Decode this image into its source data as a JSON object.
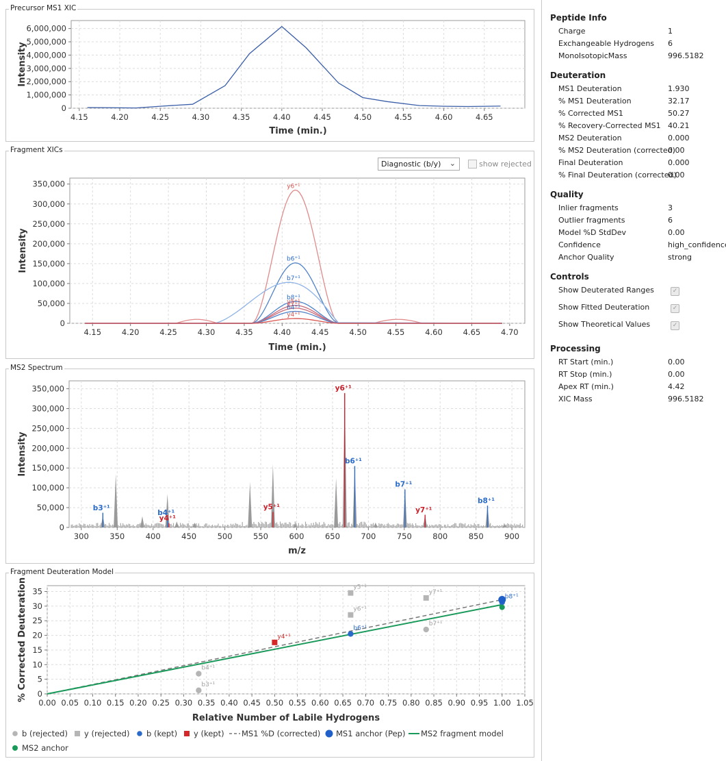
{
  "panels": {
    "xic": "Precursor MS1 XIC",
    "frag": "Fragment XICs",
    "ms2": "MS2 Spectrum",
    "model": "Fragment Deuteration Model"
  },
  "frag_controls": {
    "select_value": "Diagnostic (b/y)",
    "show_rejected_label": "show rejected",
    "show_rejected_checked": false
  },
  "side": {
    "sections": [
      {
        "title": "Peptide Info",
        "rows": [
          {
            "k": "Charge",
            "v": "1"
          },
          {
            "k": "Exchangeable Hydrogens",
            "v": "6"
          },
          {
            "k": "MonoIsotopicMass",
            "v": "996.5182"
          }
        ]
      },
      {
        "title": "Deuteration",
        "rows": [
          {
            "k": "MS1 Deuteration",
            "v": "1.930"
          },
          {
            "k": "% MS1 Deuteration",
            "v": "32.17"
          },
          {
            "k": "% Corrected MS1",
            "v": "50.27"
          },
          {
            "k": "% Recovery-Corrected MS1",
            "v": "40.21"
          },
          {
            "k": "MS2 Deuteration",
            "v": "0.000"
          },
          {
            "k": "% MS2 Deuteration (corrected)",
            "v": "0.00"
          },
          {
            "k": "Final Deuteration",
            "v": "0.000"
          },
          {
            "k": "% Final Deuteration (corrected)",
            "v": "0.00"
          }
        ]
      },
      {
        "title": "Quality",
        "rows": [
          {
            "k": "Inlier fragments",
            "v": "3"
          },
          {
            "k": "Outlier fragments",
            "v": "6"
          },
          {
            "k": "Model %D StdDev",
            "v": "0.00"
          },
          {
            "k": "Confidence",
            "v": "high_confidence"
          },
          {
            "k": "Anchor Quality",
            "v": "strong"
          }
        ]
      },
      {
        "title": "Controls",
        "checks": [
          {
            "k": "Show Deuterated Ranges",
            "checked": true
          },
          {
            "k": "Show Fitted Deuteration",
            "checked": true
          },
          {
            "k": "Show Theoretical Values",
            "checked": true
          }
        ]
      },
      {
        "title": "Processing",
        "rows": [
          {
            "k": "RT Start (min.)",
            "v": "0.00"
          },
          {
            "k": "RT Stop (min.)",
            "v": "0.00"
          },
          {
            "k": "Apex RT (min.)",
            "v": "4.42"
          },
          {
            "k": "XIC Mass",
            "v": "996.5182"
          }
        ]
      }
    ]
  },
  "chart_data": [
    {
      "type": "line",
      "xlabel": "Time (min.)",
      "ylabel": "Intensity",
      "xlim": [
        4.14,
        4.7
      ],
      "ylim": [
        0,
        6600000
      ],
      "xticks": [
        4.15,
        4.2,
        4.25,
        4.3,
        4.35,
        4.4,
        4.45,
        4.5,
        4.55,
        4.6,
        4.65
      ],
      "yticks": [
        0,
        1000000,
        2000000,
        3000000,
        4000000,
        5000000,
        6000000
      ],
      "ytick_labels": [
        "0",
        "1,000,000",
        "2,000,000",
        "3,000,000",
        "4,000,000",
        "5,000,000",
        "6,000,000"
      ],
      "xtick_labels": [
        "4.15",
        "4.20",
        "4.25",
        "4.30",
        "4.35",
        "4.40",
        "4.45",
        "4.50",
        "4.55",
        "4.60",
        "4.65"
      ],
      "color": "#3a5ea8",
      "x": [
        4.16,
        4.19,
        4.22,
        4.25,
        4.29,
        4.33,
        4.36,
        4.4,
        4.43,
        4.47,
        4.5,
        4.53,
        4.57,
        4.6,
        4.63,
        4.67
      ],
      "y": [
        50000,
        40000,
        20000,
        150000,
        300000,
        1700000,
        4100000,
        6150000,
        4550000,
        1900000,
        800000,
        500000,
        200000,
        150000,
        130000,
        160000
      ]
    },
    {
      "type": "line",
      "xlabel": "Time (min.)",
      "ylabel": "Intensity",
      "xlim": [
        4.12,
        4.72
      ],
      "ylim": [
        0,
        365000
      ],
      "xticks": [
        4.15,
        4.2,
        4.25,
        4.3,
        4.35,
        4.4,
        4.45,
        4.5,
        4.55,
        4.6,
        4.65,
        4.7
      ],
      "xtick_labels": [
        "4.15",
        "4.20",
        "4.25",
        "4.30",
        "4.35",
        "4.40",
        "4.45",
        "4.50",
        "4.55",
        "4.60",
        "4.65",
        "4.70"
      ],
      "yticks": [
        0,
        50000,
        100000,
        150000,
        200000,
        250000,
        300000,
        350000
      ],
      "ytick_labels": [
        "0",
        "50,000",
        "100,000",
        "150,000",
        "200,000",
        "250,000",
        "300,000",
        "350,000"
      ],
      "series": [
        {
          "name": "y6⁺¹",
          "peak": 335000,
          "color": "#d9534f",
          "line": "#e08a8a",
          "shape": "gauss",
          "side": 10000
        },
        {
          "name": "b6⁺¹",
          "peak": 152000,
          "color": "#2a6ac8",
          "line": "#4f82c8",
          "shape": "gauss"
        },
        {
          "name": "b7⁺¹",
          "peak": 103000,
          "color": "#2a6ac8",
          "line": "#8fb3e6",
          "shape": "wide"
        },
        {
          "name": "b8⁺¹",
          "peak": 55000,
          "color": "#2a6ac8",
          "line": "#4f82c8",
          "shape": "gauss"
        },
        {
          "name": "y5⁺¹",
          "peak": 45000,
          "color": "#d9534f",
          "line": "#c86a7a",
          "shape": "gauss"
        },
        {
          "name": "y7⁺¹",
          "peak": 38000,
          "color": "#d9534f",
          "line": "#c86a7a",
          "shape": "gauss"
        },
        {
          "name": "b4⁺¹",
          "peak": 30000,
          "color": "#2a6ac8",
          "line": "#4f82c8",
          "shape": "gauss"
        },
        {
          "name": "y4⁺¹",
          "peak": 12000,
          "color": "#d9534f",
          "line": "#d9534f",
          "shape": "gauss"
        }
      ]
    },
    {
      "type": "bar",
      "xlabel": "m/z",
      "ylabel": "Intensity",
      "xlim": [
        283,
        918
      ],
      "ylim": [
        0,
        370000
      ],
      "xticks": [
        300,
        350,
        400,
        450,
        500,
        550,
        600,
        650,
        700,
        750,
        800,
        850,
        900
      ],
      "xtick_labels": [
        "300",
        "350",
        "400",
        "450",
        "500",
        "550",
        "600",
        "650",
        "700",
        "750",
        "800",
        "850",
        "900"
      ],
      "yticks": [
        0,
        50000,
        100000,
        150000,
        200000,
        250000,
        300000,
        350000
      ],
      "ytick_labels": [
        "0",
        "50,000",
        "100,000",
        "150,000",
        "200,000",
        "250,000",
        "300,000",
        "350,000"
      ],
      "peaks": [
        [
          330,
          30000
        ],
        [
          348,
          135000
        ],
        [
          385,
          28000
        ],
        [
          420,
          85000
        ],
        [
          433,
          15000
        ],
        [
          535,
          115000
        ],
        [
          567,
          160000
        ],
        [
          655,
          125000
        ],
        [
          667,
          338000
        ],
        [
          681,
          155000
        ],
        [
          751,
          96000
        ],
        [
          779,
          32000
        ],
        [
          866,
          55000
        ],
        [
          458,
          12000
        ],
        [
          598,
          10000
        ],
        [
          710,
          12000
        ],
        [
          890,
          8000
        ]
      ],
      "annotations": [
        {
          "label": "b3⁺¹",
          "mz": 330,
          "y": 40000,
          "color": "#2a6ac8"
        },
        {
          "label": "b4⁺¹",
          "mz": 420,
          "y": 28000,
          "color": "#2a6ac8"
        },
        {
          "label": "y4⁺¹",
          "mz": 422,
          "y": 14000,
          "color": "#c8202a"
        },
        {
          "label": "y5⁺¹",
          "mz": 567,
          "y": 42000,
          "color": "#c8202a"
        },
        {
          "label": "y6⁺¹",
          "mz": 667,
          "y": 342000,
          "color": "#c8202a"
        },
        {
          "label": "b6⁺¹",
          "mz": 681,
          "y": 158000,
          "color": "#2a6ac8"
        },
        {
          "label": "b7⁺¹",
          "mz": 751,
          "y": 99000,
          "color": "#2a6ac8"
        },
        {
          "label": "y7⁺¹",
          "mz": 779,
          "y": 35000,
          "color": "#c8202a"
        },
        {
          "label": "b8⁺¹",
          "mz": 866,
          "y": 58000,
          "color": "#2a6ac8"
        }
      ]
    },
    {
      "type": "scatter",
      "xlabel": "Relative Number of Labile Hydrogens",
      "ylabel": "% Corrected Deuteration",
      "xlim": [
        0,
        1.05
      ],
      "ylim": [
        0,
        37
      ],
      "xticks": [
        0,
        0.05,
        0.1,
        0.15,
        0.2,
        0.25,
        0.3,
        0.35,
        0.4,
        0.45,
        0.5,
        0.55,
        0.6,
        0.65,
        0.7,
        0.75,
        0.8,
        0.85,
        0.9,
        0.95,
        1.0,
        1.05
      ],
      "xtick_labels": [
        "0.00",
        "0.05",
        "0.10",
        "0.15",
        "0.20",
        "0.25",
        "0.30",
        "0.35",
        "0.40",
        "0.45",
        "0.50",
        "0.55",
        "0.60",
        "0.65",
        "0.70",
        "0.75",
        "0.80",
        "0.85",
        "0.90",
        "0.95",
        "1.00",
        "1.05"
      ],
      "yticks": [
        0,
        5,
        10,
        15,
        20,
        25,
        30,
        35
      ],
      "ytick_labels": [
        "0",
        "5",
        "10",
        "15",
        "20",
        "25",
        "30",
        "35"
      ],
      "points": [
        {
          "label": "b4⁺¹",
          "x": 0.333,
          "y": 6.9,
          "kind": "b_rej"
        },
        {
          "label": "b3⁺¹",
          "x": 0.333,
          "y": 1.2,
          "kind": "b_rej"
        },
        {
          "label": "y5⁺¹",
          "x": 0.667,
          "y": 34.5,
          "kind": "y_rej"
        },
        {
          "label": "y6⁺¹",
          "x": 0.667,
          "y": 27.0,
          "kind": "y_rej"
        },
        {
          "label": "y7⁺¹",
          "x": 0.833,
          "y": 32.8,
          "kind": "y_rej"
        },
        {
          "label": "b7⁺¹",
          "x": 0.833,
          "y": 22.0,
          "kind": "b_rej"
        },
        {
          "label": "y4⁺¹",
          "x": 0.5,
          "y": 17.6,
          "kind": "y_kept"
        },
        {
          "label": "b6⁺¹",
          "x": 0.667,
          "y": 20.5,
          "kind": "b_kept"
        },
        {
          "label": "b8⁺¹",
          "x": 1.0,
          "y": 31.3,
          "kind": "b_kept"
        }
      ],
      "ms1_line": [
        [
          0,
          0
        ],
        [
          1.0,
          32.2
        ]
      ],
      "ms2_line": [
        [
          0,
          0
        ],
        [
          1.0,
          30.5
        ]
      ],
      "ms1_anchor": {
        "x": 1.0,
        "y": 32.2
      },
      "ms2_anchor": {
        "x": 1.0,
        "y": 29.6
      },
      "legend": [
        {
          "kind": "b_rej",
          "label": "b (rejected)"
        },
        {
          "kind": "y_rej",
          "label": "y (rejected)"
        },
        {
          "kind": "b_kept",
          "label": "b (kept)"
        },
        {
          "kind": "y_kept",
          "label": "y (kept)"
        },
        {
          "kind": "ms1_line",
          "label": "MS1 %D (corrected)"
        },
        {
          "kind": "ms1_anchor",
          "label": "MS1 anchor (Pep)"
        },
        {
          "kind": "ms2_line",
          "label": "MS2 fragment model"
        },
        {
          "kind": "ms2_anchor",
          "label": "MS2 anchor"
        }
      ],
      "colors": {
        "rejected": "#b5b5b5",
        "b_kept": "#2a6ac8",
        "y_kept": "#d62728",
        "ms1": "#777777",
        "ms2": "#1a9a5a",
        "anchor": "#1f5fc8"
      }
    }
  ]
}
